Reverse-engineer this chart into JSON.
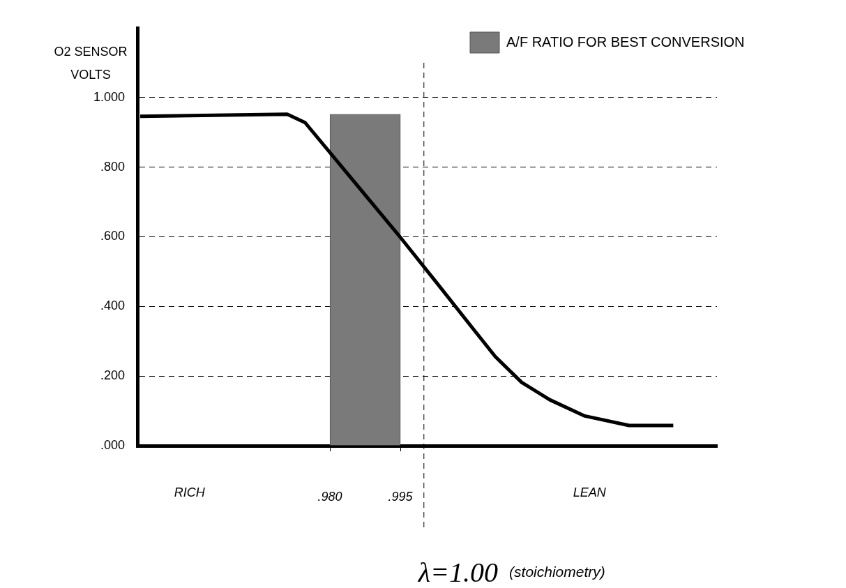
{
  "chart_data": {
    "type": "line",
    "ylabel": "O2 SENSOR VOLTS",
    "x": [
      0.9396,
      0.9709,
      0.9747,
      0.9949,
      1.0026,
      1.0107,
      1.0152,
      1.0208,
      1.0268,
      1.0341,
      1.0437,
      1.0531
    ],
    "series": [
      {
        "color": "#000000",
        "values": [
          0.946,
          0.952,
          0.928,
          0.6,
          0.47,
          0.332,
          0.256,
          0.182,
          0.132,
          0.086,
          0.058,
          0.058
        ]
      },
      {
        "type": "histogram",
        "name": "A/F RATIO FOR BEST CONVERSION",
        "color": "#7a7a7a",
        "bins": [
          0.98,
          0.995
        ],
        "values": [
          0.952
        ]
      }
    ],
    "xlim": [
      0.939,
      1.0624
    ],
    "ylim": [
      0,
      1.2
    ],
    "xticks": [
      {
        "value": 0.98,
        "label": ".980"
      },
      {
        "value": 0.995,
        "label": ".995"
      }
    ],
    "yticks": [
      {
        "value": 0,
        "label": ".000"
      },
      {
        "value": 0.2,
        "label": ".200"
      },
      {
        "value": 0.4,
        "label": ".400"
      },
      {
        "value": 0.6,
        "label": ".600"
      },
      {
        "value": 0.8,
        "label": ".800"
      },
      {
        "value": 1,
        "label": "1.000"
      }
    ],
    "grid": "y",
    "line_style": "solid",
    "marker": "none",
    "legend": "right",
    "ref_lines": [
      {
        "axis": "x",
        "value": 1.0,
        "label": "λ=1.00 (stoichiometry)",
        "line_style": "dashed"
      }
    ],
    "annotations": [
      "RICH",
      "LEAN"
    ]
  }
}
